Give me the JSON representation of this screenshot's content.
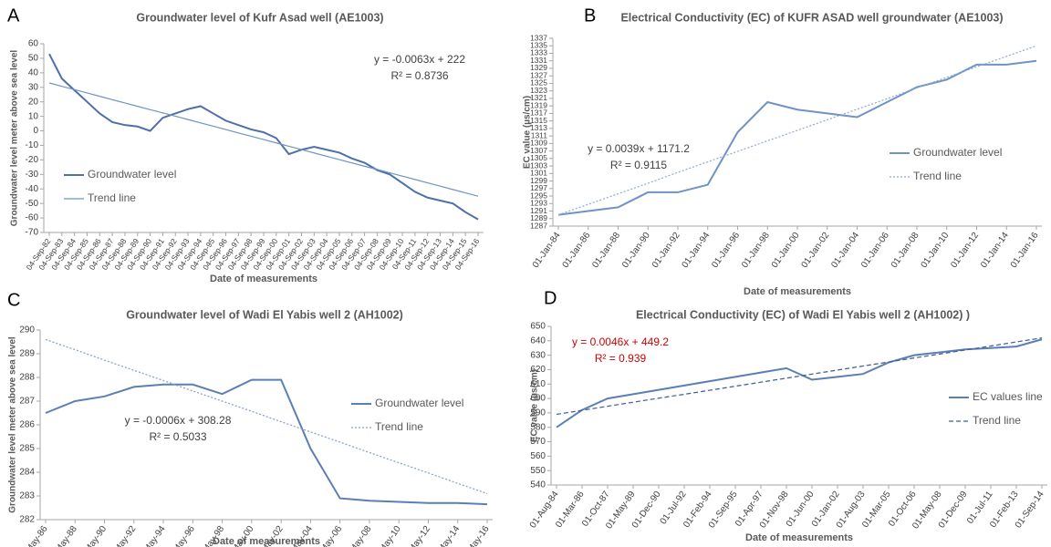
{
  "chart_data": [
    {
      "panel": "A",
      "type": "line",
      "title": "Groundwater level of Kufr Asad well (AE1003)",
      "x_label": "Date of measurements",
      "y_label": "Groundwater level meter above sea level",
      "categories": [
        "04-Sep-82",
        "04-Sep-83",
        "04-Sep-84",
        "04-Sep-85",
        "04-Sep-86",
        "04-Sep-87",
        "04-Sep-88",
        "04-Sep-89",
        "04-Sep-90",
        "04-Sep-91",
        "04-Sep-92",
        "04-Sep-93",
        "04-Sep-94",
        "04-Sep-95",
        "04-Sep-96",
        "04-Sep-97",
        "04-Sep-98",
        "04-Sep-99",
        "04-Sep-00",
        "04-Sep-01",
        "04-Sep-02",
        "04-Sep-03",
        "04-Sep-04",
        "04-Sep-05",
        "04-Sep-06",
        "04-Sep-07",
        "04-Sep-08",
        "04-Sep-09",
        "04-Sep-10",
        "04-Sep-11",
        "04-Sep-12",
        "04-Sep-13",
        "04-Sep-14",
        "04-Sep-15",
        "04-Sep-16"
      ],
      "series": [
        {
          "name": "Groundwater level",
          "color": "#4f6fa8",
          "dash": "solid",
          "values": [
            53,
            36,
            28,
            20,
            12,
            6,
            4,
            3,
            0,
            9,
            12,
            15,
            17,
            12,
            7,
            4,
            1,
            -1,
            -5,
            -16,
            -13,
            -11,
            -13,
            -15,
            -19,
            -22,
            -27,
            -30,
            -36,
            -42,
            -46,
            -48,
            -50,
            -56,
            -61
          ]
        },
        {
          "name": "Trend line",
          "color": "#6f93c4",
          "dash": "solid",
          "values": [
            33,
            30.7,
            28.4,
            26.1,
            23.8,
            21.5,
            19.2,
            16.9,
            14.6,
            12.4,
            10.1,
            7.8,
            5.5,
            3.2,
            0.9,
            -1.4,
            -3.7,
            -6.0,
            -8.3,
            -10.6,
            -12.9,
            -15.2,
            -17.5,
            -19.8,
            -22.1,
            -24.4,
            -26.6,
            -28.9,
            -31.2,
            -33.5,
            -35.8,
            -38.1,
            -40.4,
            -42.7,
            -45
          ]
        }
      ],
      "annotations": [
        "y = -0.0063x + 222",
        "R² = 0.8736"
      ],
      "annotation_color": "#404040",
      "ylim": [
        -70,
        60
      ],
      "yticks": [
        -70,
        -60,
        -50,
        -40,
        -30,
        -20,
        -10,
        0,
        10,
        20,
        30,
        40,
        50,
        60
      ]
    },
    {
      "panel": "B",
      "type": "line",
      "title": "Electrical Conductivity (EC) of KUFR ASAD well groundwater (AE1003)",
      "x_label": "Date of measurements",
      "y_label": "EC value (µs/cm)",
      "categories": [
        "01-Jan-84",
        "01-Jan-86",
        "01-Jan-88",
        "01-Jan-90",
        "01-Jan-92",
        "01-Jan-94",
        "01-Jan-96",
        "01-Jan-98",
        "01-Jan-00",
        "01-Jan-02",
        "01-Jan-04",
        "01-Jan-06",
        "01-Jan-08",
        "01-Jan-10",
        "01-Jan-12",
        "01-Jan-14",
        "01-Jan-16"
      ],
      "series": [
        {
          "name": "Groundwater level",
          "color": "#6f93c4",
          "dash": "solid",
          "values": [
            1290,
            1291,
            1292,
            1296,
            1296,
            1298,
            1312,
            1320,
            1318,
            1317,
            1316,
            1320,
            1324,
            1326,
            1330,
            1330,
            1331
          ]
        },
        {
          "name": "Trend line",
          "color": "#8fa9d0",
          "dash": "dotted",
          "values": [
            1290,
            1292.8,
            1295.6,
            1298.4,
            1301.3,
            1304.1,
            1306.9,
            1309.7,
            1312.5,
            1315.3,
            1318.1,
            1320.9,
            1323.8,
            1326.6,
            1329.4,
            1332.2,
            1335
          ]
        }
      ],
      "annotations": [
        "y = 0.0039x + 1171.2",
        "R² = 0.9115"
      ],
      "annotation_color": "#404040",
      "ylim": [
        1287,
        1337
      ],
      "yticks": [
        1287,
        1289,
        1291,
        1293,
        1295,
        1297,
        1299,
        1301,
        1303,
        1305,
        1307,
        1309,
        1311,
        1313,
        1315,
        1317,
        1319,
        1321,
        1323,
        1325,
        1327,
        1329,
        1331,
        1333,
        1335,
        1337
      ]
    },
    {
      "panel": "C",
      "type": "line",
      "title": "Groundwater level of Wadi El Yabis well 2 (AH1002)",
      "x_label": "Date of measurements",
      "y_label": "Groundwater level meter above sea level",
      "categories": [
        "12-May-86",
        "12-May-88",
        "12-May-90",
        "12-May-92",
        "12-May-94",
        "12-May-96",
        "12-May-98",
        "12-May-00",
        "12-May-02",
        "12-May-04",
        "12-May-06",
        "12-May-08",
        "12-May-10",
        "12-May-12",
        "12-May-14",
        "12-May-16"
      ],
      "series": [
        {
          "name": "Groundwater level",
          "color": "#5b7fb5",
          "dash": "solid",
          "values": [
            286.5,
            287.0,
            287.2,
            287.6,
            287.7,
            287.7,
            287.3,
            287.9,
            287.9,
            285.0,
            282.9,
            282.8,
            282.75,
            282.7,
            282.7,
            282.65
          ]
        },
        {
          "name": "Trend line",
          "color": "#7f9fcc",
          "dash": "dotted",
          "values": [
            289.6,
            289.17,
            288.73,
            288.3,
            287.87,
            287.43,
            287.0,
            286.57,
            286.13,
            285.7,
            285.27,
            284.83,
            284.4,
            283.97,
            283.53,
            283.1
          ]
        }
      ],
      "annotations": [
        "y = -0.0006x + 308.28",
        "R² = 0.5033"
      ],
      "annotation_color": "#404040",
      "ylim": [
        282,
        290
      ],
      "yticks": [
        282,
        283,
        284,
        285,
        286,
        287,
        288,
        289,
        290
      ]
    },
    {
      "panel": "D",
      "type": "line",
      "title": "Electrical Conductivity (EC) of  Wadi El Yabis well 2 (AH1002) )",
      "x_label": "Date of measurements",
      "y_label": "EC value (µs/cm)",
      "categories": [
        "01-Aug-84",
        "01-Mar-86",
        "01-Oct-87",
        "01-May-89",
        "01-Dec-90",
        "01-Jul-92",
        "01-Feb-94",
        "01-Sep-95",
        "01-Apr-97",
        "01-Nov-98",
        "01-Jun-00",
        "01-Jan-02",
        "01-Aug-03",
        "01-Mar-05",
        "01-Oct-06",
        "01-May-08",
        "01-Dec-09",
        "01-Jul-11",
        "01-Feb-13",
        "01-Sep-14"
      ],
      "series": [
        {
          "name": "EC values line",
          "color": "#5b7fb5",
          "dash": "solid",
          "values": [
            580,
            592,
            600,
            603,
            606,
            609,
            612,
            615,
            618,
            621,
            613,
            615,
            617,
            625,
            630,
            632,
            634,
            635,
            636,
            641
          ]
        },
        {
          "name": "Trend line",
          "color": "#3f5f95",
          "dash": "dashed",
          "values": [
            589,
            591.8,
            594.6,
            597.4,
            600.2,
            602.9,
            605.7,
            608.5,
            611.3,
            614.1,
            616.9,
            619.7,
            622.5,
            625.3,
            628.1,
            630.8,
            633.6,
            636.4,
            639.2,
            642
          ]
        }
      ],
      "annotations": [
        "y = 0.0046x + 449.2",
        "R² = 0.939"
      ],
      "annotation_color": "#d00000",
      "ylim": [
        540,
        650
      ],
      "yticks": [
        540,
        550,
        560,
        570,
        580,
        590,
        600,
        610,
        620,
        630,
        640,
        650
      ]
    }
  ]
}
